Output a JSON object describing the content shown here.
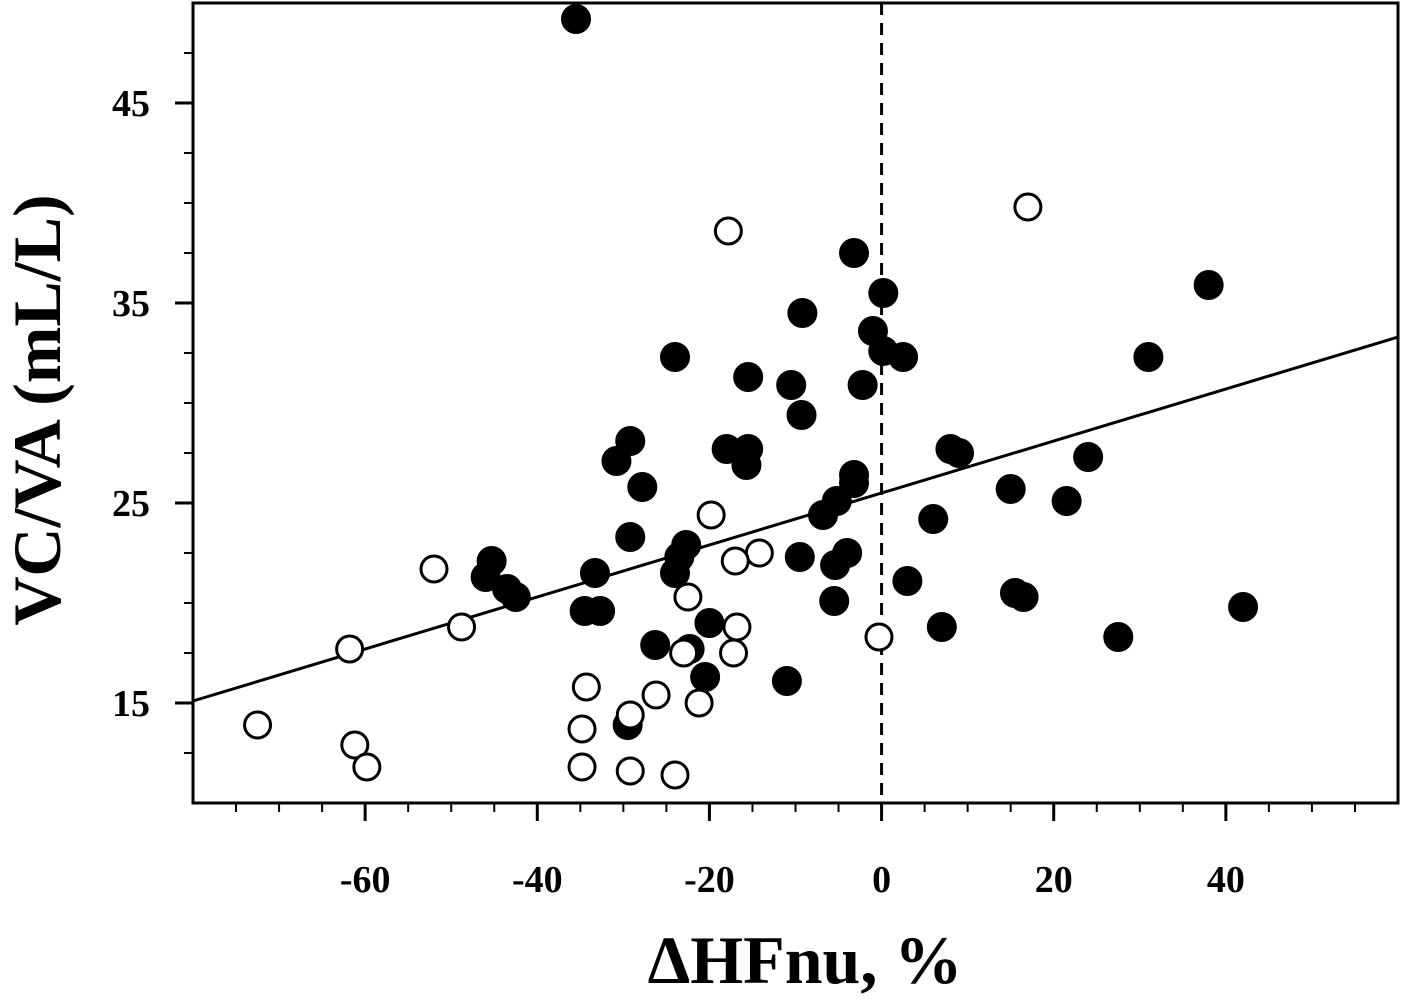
{
  "chart_data": {
    "type": "scatter",
    "title": "",
    "xlabel": "ΔHFnu, %",
    "ylabel": "VC/VA (mL/L)",
    "xlim": [
      -80,
      60
    ],
    "ylim": [
      10,
      50
    ],
    "x_major_ticks": [
      -60,
      -40,
      -20,
      0,
      20,
      40
    ],
    "x_minor_step": 5,
    "y_major_ticks": [
      15,
      25,
      35,
      45
    ],
    "y_minor_step": 2.5,
    "reference_line_x": 0,
    "regression_line": {
      "x": [
        -80,
        60
      ],
      "y": [
        15.1,
        33.3
      ]
    },
    "series": [
      {
        "style": "filled",
        "color": "#000000",
        "points": [
          [
            -35.5,
            49.2
          ],
          [
            -3.2,
            37.5
          ],
          [
            0.2,
            35.5
          ],
          [
            -9.2,
            34.5
          ],
          [
            -1.0,
            33.6
          ],
          [
            0.2,
            32.6
          ],
          [
            2.5,
            32.3
          ],
          [
            -24.0,
            32.3
          ],
          [
            -15.5,
            31.3
          ],
          [
            -10.5,
            30.9
          ],
          [
            -2.2,
            30.9
          ],
          [
            -9.3,
            29.4
          ],
          [
            -29.2,
            28.1
          ],
          [
            -30.8,
            27.1
          ],
          [
            -18.0,
            27.7
          ],
          [
            -15.5,
            27.7
          ],
          [
            -15.7,
            26.9
          ],
          [
            -27.8,
            25.8
          ],
          [
            -3.2,
            26.4
          ],
          [
            -3.2,
            26.0
          ],
          [
            -5.2,
            25.1
          ],
          [
            -6.8,
            24.4
          ],
          [
            -29.2,
            23.3
          ],
          [
            -22.7,
            22.9
          ],
          [
            -23.5,
            22.3
          ],
          [
            -24.0,
            21.5
          ],
          [
            -4.0,
            22.5
          ],
          [
            -5.4,
            21.9
          ],
          [
            -9.5,
            22.3
          ],
          [
            -33.3,
            21.5
          ],
          [
            -45.3,
            22.1
          ],
          [
            -46.0,
            21.3
          ],
          [
            -43.5,
            20.7
          ],
          [
            -42.5,
            20.3
          ],
          [
            -34.5,
            19.6
          ],
          [
            -32.7,
            19.6
          ],
          [
            -20.0,
            19.0
          ],
          [
            -26.3,
            17.9
          ],
          [
            -22.3,
            17.7
          ],
          [
            -20.5,
            16.3
          ],
          [
            -11.0,
            16.1
          ],
          [
            -29.5,
            13.9
          ],
          [
            -5.5,
            20.1
          ],
          [
            3.0,
            21.1
          ],
          [
            6.0,
            24.2
          ],
          [
            7.0,
            18.8
          ],
          [
            8.0,
            27.7
          ],
          [
            9.0,
            27.5
          ],
          [
            15.0,
            25.7
          ],
          [
            15.5,
            20.5
          ],
          [
            16.5,
            20.3
          ],
          [
            21.5,
            25.1
          ],
          [
            24.0,
            27.3
          ],
          [
            27.5,
            18.3
          ],
          [
            31.0,
            32.3
          ],
          [
            38.0,
            35.9
          ],
          [
            42.0,
            19.8
          ]
        ]
      },
      {
        "style": "open",
        "color": "#000000",
        "points": [
          [
            17.0,
            39.8
          ],
          [
            -17.8,
            38.6
          ],
          [
            -19.8,
            24.4
          ],
          [
            -14.2,
            22.5
          ],
          [
            -17.0,
            22.1
          ],
          [
            -52.0,
            21.7
          ],
          [
            -22.5,
            20.3
          ],
          [
            -48.8,
            18.8
          ],
          [
            -16.8,
            18.8
          ],
          [
            -61.8,
            17.7
          ],
          [
            -23.0,
            17.5
          ],
          [
            -17.2,
            17.5
          ],
          [
            -0.3,
            18.3
          ],
          [
            -34.3,
            15.8
          ],
          [
            -26.2,
            15.4
          ],
          [
            -21.2,
            15.0
          ],
          [
            -29.2,
            14.4
          ],
          [
            -34.8,
            13.7
          ],
          [
            -72.5,
            13.9
          ],
          [
            -61.2,
            12.9
          ],
          [
            -59.8,
            11.8
          ],
          [
            -34.8,
            11.8
          ],
          [
            -29.2,
            11.6
          ],
          [
            -24.0,
            11.4
          ]
        ]
      }
    ]
  }
}
